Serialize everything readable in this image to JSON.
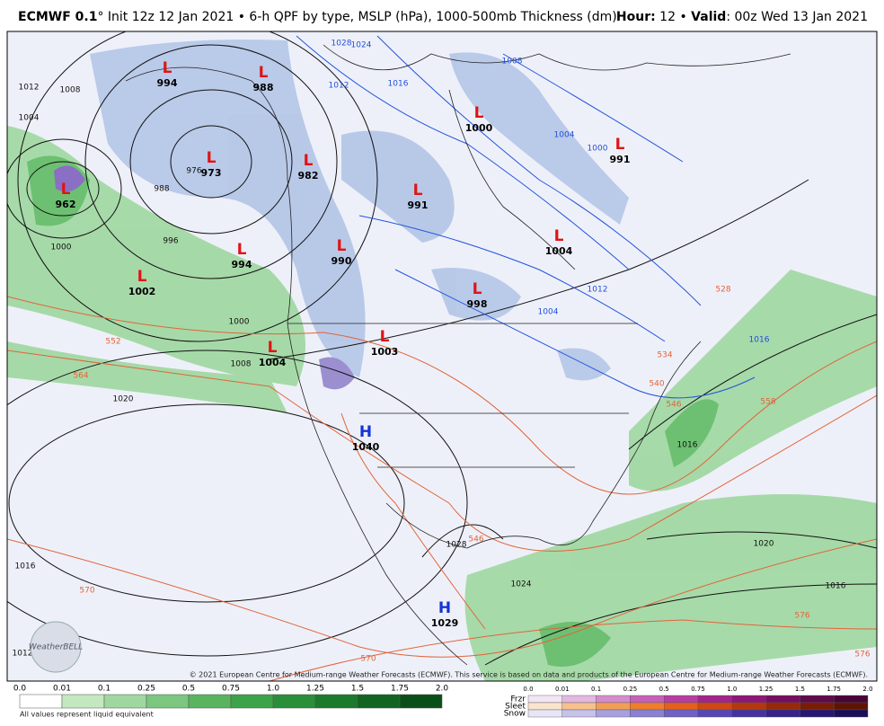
{
  "header": {
    "model": "ECMWF 0.1",
    "description": "° Init 12z 12 Jan 2021 • 6-h QPF by type, MSLP (hPa), 1000-500mb Thickness (dm)",
    "hour_label": "Hour:",
    "hour": "12",
    "valid_label": "Valid",
    "valid": ": 00z Wed 13 Jan 2021"
  },
  "centers": [
    {
      "symbol": "L",
      "value": 994
    },
    {
      "symbol": "L",
      "value": 988
    },
    {
      "symbol": "L",
      "value": 973
    },
    {
      "symbol": "L",
      "value": 962
    },
    {
      "symbol": "L",
      "value": 982
    },
    {
      "symbol": "L",
      "value": 991
    },
    {
      "symbol": "L",
      "value": 1000
    },
    {
      "symbol": "L",
      "value": 991
    },
    {
      "symbol": "L",
      "value": 1004
    },
    {
      "symbol": "L",
      "value": 990
    },
    {
      "symbol": "L",
      "value": 994
    },
    {
      "symbol": "L",
      "value": 1002
    },
    {
      "symbol": "L",
      "value": 998
    },
    {
      "symbol": "L",
      "value": 1003
    },
    {
      "symbol": "L",
      "value": 1004
    },
    {
      "symbol": "H",
      "value": 1040
    },
    {
      "symbol": "H",
      "value": 1029
    }
  ],
  "isobar_labels": [
    1012,
    1008,
    1004,
    1020,
    1016,
    1012,
    1028,
    1024,
    1020,
    1016,
    1016,
    1000,
    1008,
    1000,
    996,
    988,
    976
  ],
  "blue_isobar_labels": [
    1008,
    1016,
    1012,
    1024,
    1028,
    1004,
    1000,
    1016,
    1012,
    1004
  ],
  "thickness_labels": [
    552,
    564,
    570,
    570,
    576,
    576,
    558,
    546,
    540,
    534,
    528,
    546
  ],
  "legend": {
    "rain_ticks": [
      "0.0",
      "0.01",
      "0.1",
      "0.25",
      "0.5",
      "0.75",
      "1.0",
      "1.25",
      "1.5",
      "1.75",
      "2.0"
    ],
    "mixed_ticks": [
      "0.0",
      "0.01",
      "0.1",
      "0.25",
      "0.5",
      "0.75",
      "1.0",
      "1.25",
      "1.5",
      "1.75",
      "2.0"
    ],
    "rows": [
      "Frzr",
      "Sleet",
      "Snow"
    ],
    "note": "All values represent liquid equivalent"
  },
  "credits": {
    "copyright": "© 2021 European Centre for Medium-range Weather Forecasts (ECMWF). This service is based on data and products of the European Centre for Medium-range Weather Forecasts (ECMWF).",
    "logo": "WeatherBELL"
  }
}
